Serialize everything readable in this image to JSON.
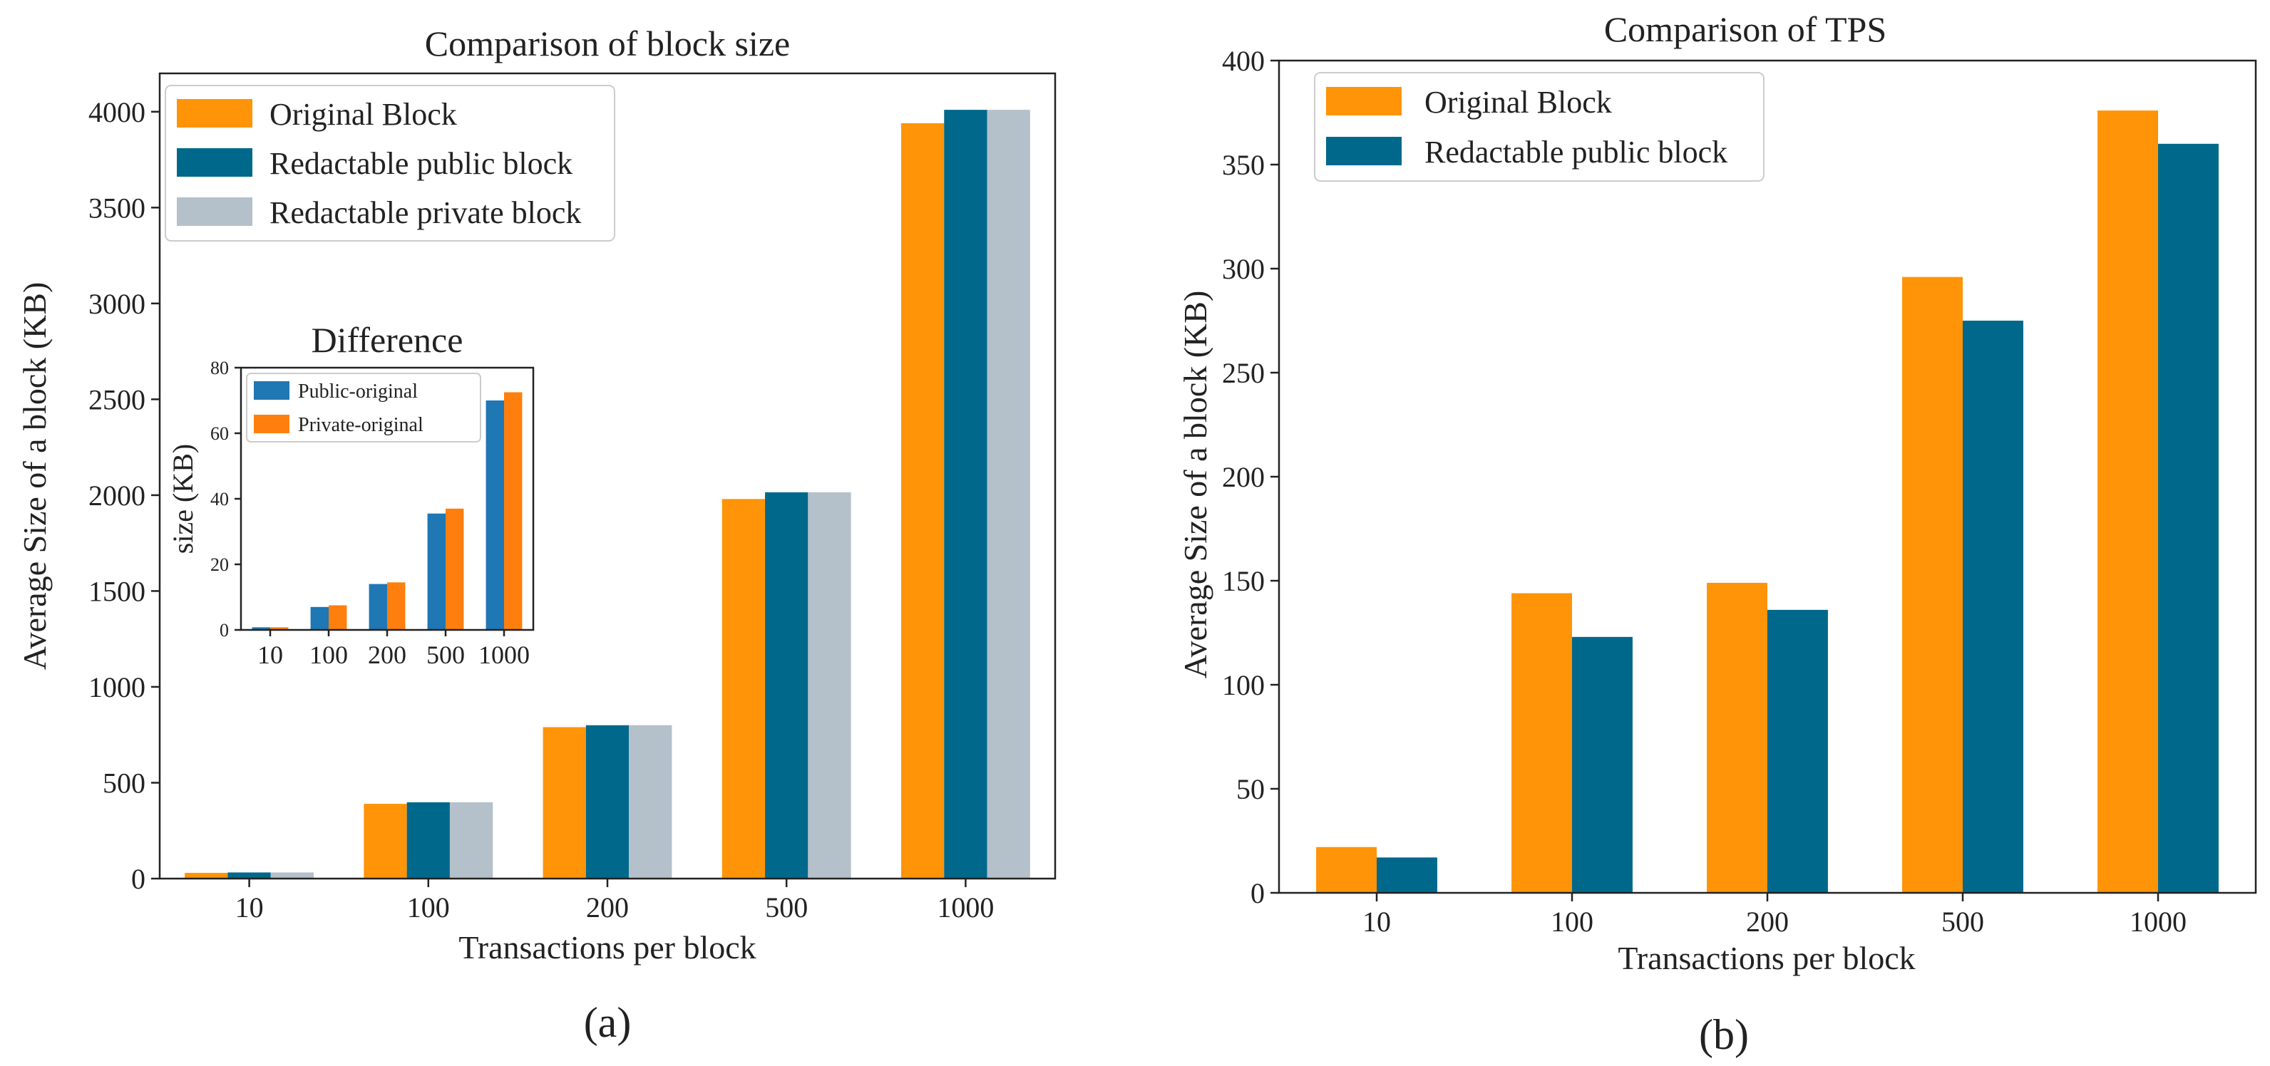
{
  "chart_data": [
    {
      "id": "a",
      "type": "bar",
      "title": "Comparison of block size",
      "xlabel": "Transactions per block",
      "ylabel": "Average Size of a block (KB)",
      "categories": [
        "10",
        "100",
        "200",
        "500",
        "1000"
      ],
      "ylim": [
        0,
        4200
      ],
      "yticks": [
        "0",
        "500",
        "1000",
        "1500",
        "2000",
        "2500",
        "3000",
        "3500",
        "4000"
      ],
      "legend_position": "top-left",
      "series": [
        {
          "name": "Original Block",
          "color": "#ff9408",
          "values": [
            30,
            390,
            790,
            1980,
            3940
          ]
        },
        {
          "name": "Redactable public block",
          "color": "#00688b",
          "values": [
            32,
            398,
            800,
            2015,
            4010
          ]
        },
        {
          "name": "Redactable private block",
          "color": "#b4c0ca",
          "values": [
            32,
            398,
            800,
            2015,
            4010
          ]
        }
      ],
      "inset": {
        "type": "bar",
        "title": "Difference",
        "ylabel": "size (KB)",
        "categories": [
          "10",
          "100",
          "200",
          "500",
          "1000"
        ],
        "ylim": [
          0,
          80
        ],
        "yticks": [
          "0",
          "20",
          "40",
          "60",
          "80"
        ],
        "legend_position": "top-left",
        "series": [
          {
            "name": "Public-original",
            "color": "#1f77b4",
            "values": [
              0.8,
              7,
              14,
              35.5,
              70
            ]
          },
          {
            "name": "Private-original",
            "color": "#ff7f0e",
            "values": [
              0.8,
              7.5,
              14.5,
              37,
              72.5
            ]
          }
        ]
      },
      "caption": "(a)"
    },
    {
      "id": "b",
      "type": "bar",
      "title": "Comparison of TPS",
      "xlabel": "Transactions per block",
      "ylabel": "Average Size of a block (KB)",
      "categories": [
        "10",
        "100",
        "200",
        "500",
        "1000"
      ],
      "ylim": [
        0,
        400
      ],
      "yticks": [
        "0",
        "50",
        "100",
        "150",
        "200",
        "250",
        "300",
        "350",
        "400"
      ],
      "legend_position": "top-left",
      "series": [
        {
          "name": "Original Block",
          "color": "#ff9408",
          "values": [
            22,
            144,
            149,
            296,
            376
          ]
        },
        {
          "name": "Redactable public block",
          "color": "#00688b",
          "values": [
            17,
            123,
            136,
            275,
            360
          ]
        }
      ],
      "caption": "(b)"
    }
  ]
}
